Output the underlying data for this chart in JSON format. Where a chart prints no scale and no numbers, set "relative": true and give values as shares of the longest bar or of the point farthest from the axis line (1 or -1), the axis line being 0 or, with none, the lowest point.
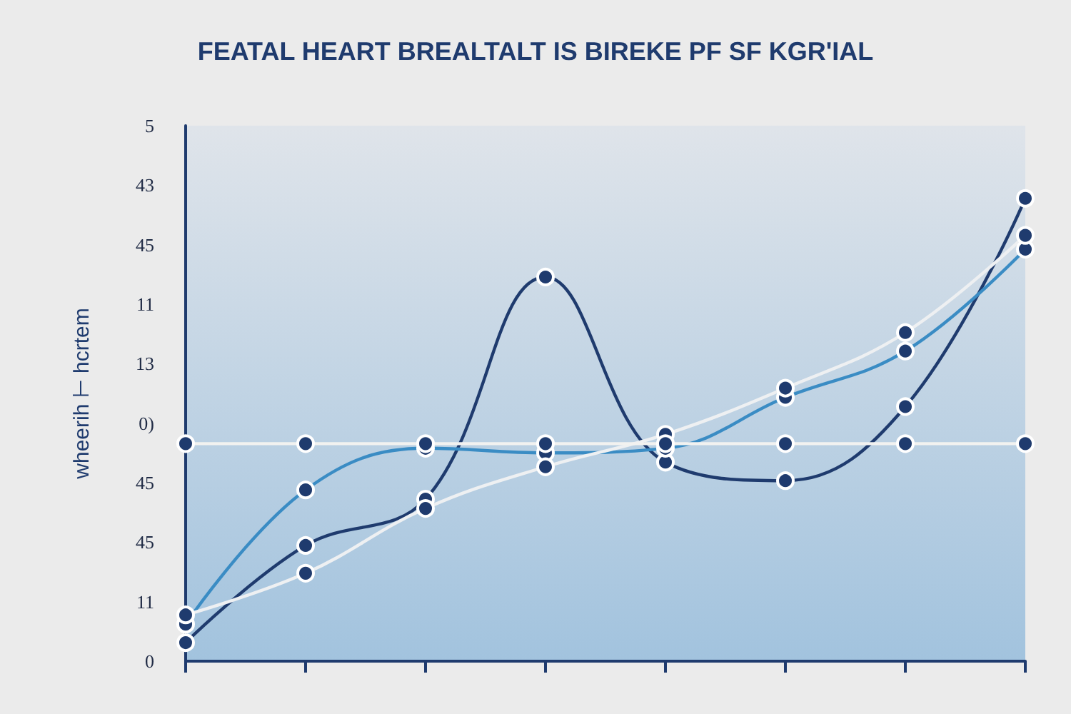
{
  "chart_data": {
    "type": "line",
    "title": "FEATAL HEART BREALTALT IS BIREKE PF SF KGR'IAL",
    "ylabel": "wheerih ⊢ hcrtem",
    "categories": [
      null,
      null,
      null,
      null,
      null,
      null,
      null,
      null
    ],
    "y_categories": [
      "5",
      "43",
      "45",
      "11",
      "13",
      "0)",
      "45",
      "45",
      "11",
      "0"
    ],
    "relative": true,
    "series": [
      {
        "color": "#1f3b6e",
        "values": [
          0.04,
          0.25,
          0.35,
          0.83,
          0.43,
          0.39,
          0.55,
          1
        ]
      },
      {
        "color": "#3a8cc4",
        "values": [
          0.08,
          0.37,
          0.46,
          0.45,
          0.46,
          0.57,
          0.67,
          0.89
        ]
      },
      {
        "color": "#eef0f2",
        "values": [
          0.1,
          0.19,
          0.33,
          0.42,
          0.49,
          0.59,
          0.71,
          0.92
        ]
      },
      {
        "color": "#f2f2f0",
        "values": [
          0.47,
          0.47,
          0.47,
          0.47,
          0.47,
          0.47,
          0.47,
          0.47
        ]
      }
    ],
    "tick_labels": "y",
    "grid": false,
    "marker": "circle",
    "line_style": "solid"
  }
}
